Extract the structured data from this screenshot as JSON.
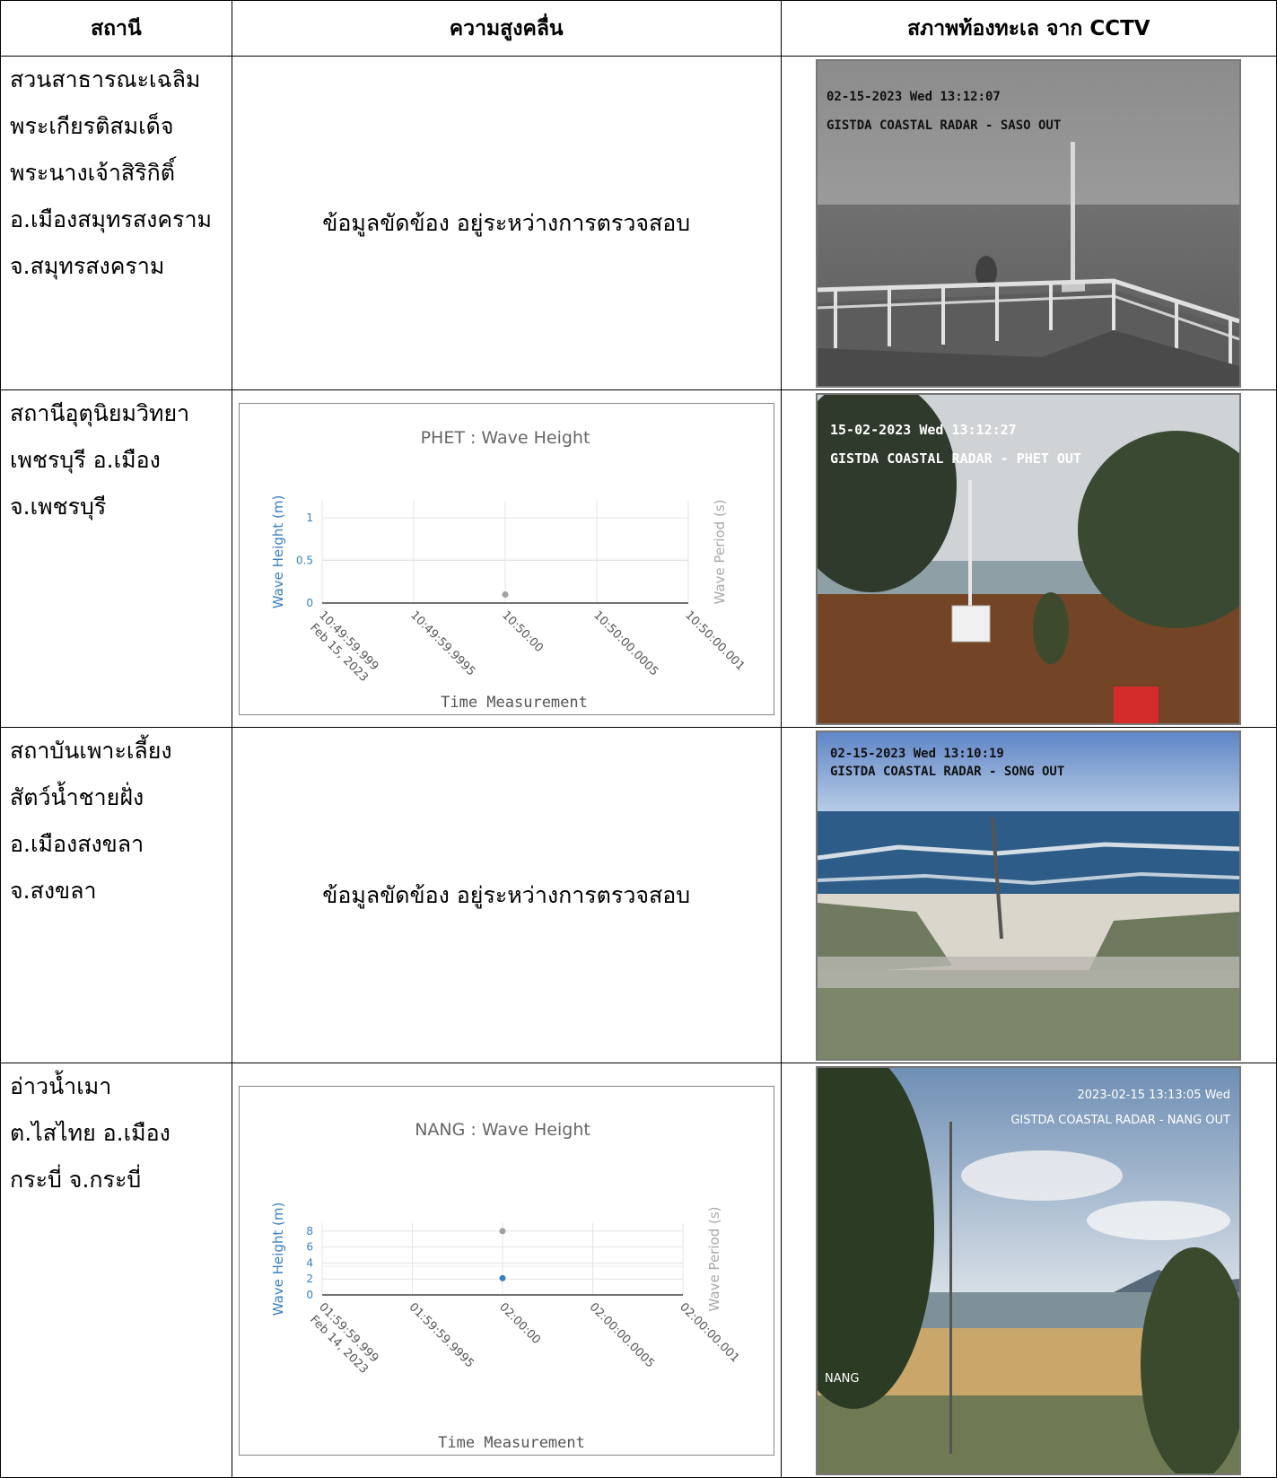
{
  "headers": {
    "station": "สถานี",
    "wave": "ความสูงคลื่น",
    "cctv": "สภาพท้องทะเล จาก CCTV"
  },
  "rows": [
    {
      "station_lines": [
        "สวนสาธารณะเฉลิม",
        "พระเกียรติสมเด็จ",
        "พระนางเจ้าสิริกิติ์",
        "อ.เมืองสมุทรสงคราม",
        "จ.สมุทรสงคราม"
      ],
      "wave_status": "ข้อมูลขัดข้อง อยู่ระหว่างการตรวจสอบ",
      "cctv": {
        "timestamp": "02-15-2023 Wed 13:12:07",
        "caption": "GISTDA COASTAL RADAR - SASO OUT"
      }
    },
    {
      "station_lines": [
        "สถานีอุตุนิยมวิทยา",
        "เพชรบุรี อ.เมือง",
        "จ.เพชรบุรี"
      ],
      "wave_status": "",
      "cctv": {
        "timestamp": "15-02-2023 Wed 13:12:27",
        "caption": "GISTDA COASTAL RADAR - PHET OUT"
      }
    },
    {
      "station_lines": [
        "สถาบันเพาะเลี้ยง",
        "สัตว์น้ำชายฝั่ง",
        "อ.เมืองสงขลา",
        "จ.สงขลา"
      ],
      "wave_status": "ข้อมูลขัดข้อง อยู่ระหว่างการตรวจสอบ",
      "cctv": {
        "timestamp": "02-15-2023 Wed 13:10:19",
        "caption": "GISTDA COASTAL RADAR - SONG OUT"
      }
    },
    {
      "station_lines": [
        "อ่าวน้ำเมา",
        "ต.ไสไทย  อ.เมือง",
        "กระบี่ จ.กระบี่"
      ],
      "wave_status": "",
      "cctv": {
        "timestamp": "2023-02-15 13:13:05 Wed",
        "caption": "GISTDA COASTAL RADAR - NANG OUT",
        "corner_label": "NANG"
      }
    }
  ],
  "chart_data": [
    {
      "type": "scatter",
      "title": "PHET : Wave Height",
      "xlabel": "Time Measurement",
      "ylabel": "Wave Height (m)",
      "y2label": "Wave Period (s)",
      "x_ticks": [
        "10:49:59.999",
        "10:49:59.9995",
        "10:50:00",
        "10:50:00.0005",
        "10:50:00.001"
      ],
      "x_date_label": "Feb 15, 2023",
      "y_ticks": [
        0,
        0.5,
        1
      ],
      "ylim": [
        0,
        1.2
      ],
      "series": [
        {
          "name": "Wave Period (s)",
          "color": "#a0a0a0",
          "points": [
            {
              "x": "10:50:00",
              "y": 0.1
            }
          ]
        }
      ]
    },
    {
      "type": "scatter",
      "title": "NANG : Wave Height",
      "xlabel": "Time Measurement",
      "ylabel": "Wave Height (m)",
      "y2label": "Wave Period (s)",
      "x_ticks": [
        "01:59:59.999",
        "01:59:59.9995",
        "02:00:00",
        "02:00:00.0005",
        "02:00:00.001"
      ],
      "x_date_label": "Feb 14, 2023",
      "y_ticks": [
        0,
        2,
        4,
        6,
        8
      ],
      "ylim": [
        0,
        9
      ],
      "series": [
        {
          "name": "Wave Period (s)",
          "color": "#a0a0a0",
          "points": [
            {
              "x": "02:00:00",
              "y": 8
            }
          ]
        },
        {
          "name": "Wave Height (m)",
          "color": "#3a7fc1",
          "points": [
            {
              "x": "02:00:00",
              "y": 2.1
            }
          ]
        }
      ]
    }
  ]
}
